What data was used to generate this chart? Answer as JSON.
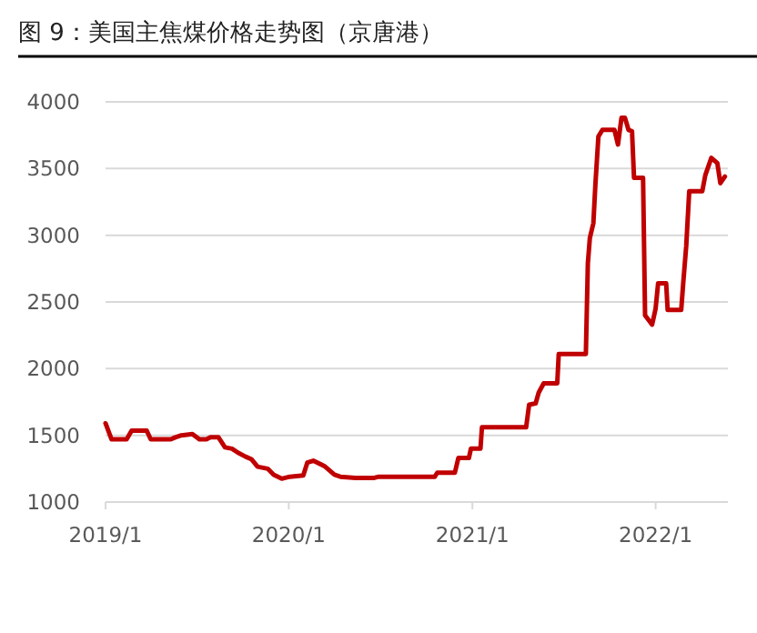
{
  "chart_data": {
    "type": "line",
    "title": "图 9：美国主焦煤价格走势图（京唐港）",
    "x": [
      "2019-01-01",
      "2019-01-13",
      "2019-02-12",
      "2019-02-22",
      "2019-03-24",
      "2019-04-01",
      "2019-05-11",
      "2019-05-20",
      "2019-06-01",
      "2019-06-23",
      "2019-07-07",
      "2019-07-21",
      "2019-07-29",
      "2019-08-14",
      "2019-08-27",
      "2019-09-10",
      "2019-09-22",
      "2019-10-07",
      "2019-10-19",
      "2019-10-31",
      "2019-11-20",
      "2019-12-02",
      "2019-12-18",
      "2020-01-03",
      "2020-01-30",
      "2020-02-07",
      "2020-02-19",
      "2020-03-12",
      "2020-04-01",
      "2020-04-13",
      "2020-05-13",
      "2020-06-18",
      "2020-06-28",
      "2020-10-18",
      "2020-10-23",
      "2020-11-27",
      "2020-12-04",
      "2020-12-25",
      "2020-12-29",
      "2021-01-17",
      "2021-01-20",
      "2021-04-18",
      "2021-04-24",
      "2021-05-07",
      "2021-05-13",
      "2021-05-23",
      "2021-06-19",
      "2021-06-22",
      "2021-08-15",
      "2021-08-19",
      "2021-08-23",
      "2021-08-30",
      "2021-09-03",
      "2021-09-09",
      "2021-09-17",
      "2021-10-11",
      "2021-10-18",
      "2021-10-25",
      "2021-11-01",
      "2021-11-08",
      "2021-11-15",
      "2021-11-19",
      "2021-12-07",
      "2021-12-11",
      "2021-12-19",
      "2021-12-25",
      "2022-01-01",
      "2022-01-06",
      "2022-01-22",
      "2022-01-25",
      "2022-02-21",
      "2022-02-25",
      "2022-03-03",
      "2022-03-09",
      "2022-04-04",
      "2022-04-10",
      "2022-04-22",
      "2022-05-04",
      "2022-05-10",
      "2022-05-19"
    ],
    "series": [
      {
        "color": "#c00000",
        "values": [
          1590,
          1470,
          1470,
          1535,
          1535,
          1470,
          1470,
          1485,
          1500,
          1510,
          1470,
          1470,
          1485,
          1485,
          1410,
          1400,
          1370,
          1340,
          1320,
          1265,
          1250,
          1205,
          1175,
          1190,
          1200,
          1295,
          1310,
          1270,
          1205,
          1190,
          1180,
          1180,
          1190,
          1190,
          1220,
          1220,
          1330,
          1330,
          1400,
          1400,
          1560,
          1560,
          1730,
          1740,
          1820,
          1890,
          1890,
          2110,
          2110,
          2790,
          2980,
          3090,
          3380,
          3740,
          3790,
          3790,
          3680,
          3880,
          3880,
          3790,
          3780,
          3430,
          3430,
          2400,
          2360,
          2330,
          2450,
          2640,
          2640,
          2440,
          2440,
          2640,
          2920,
          3330,
          3330,
          3450,
          3580,
          3540,
          3390,
          3440
        ]
      }
    ],
    "xlim": [
      "2019-01-01",
      "2022-05-25"
    ],
    "xticks": [
      {
        "value": "2019-01-01",
        "label": "2019/1"
      },
      {
        "value": "2020-01-01",
        "label": "2020/1"
      },
      {
        "value": "2021-01-01",
        "label": "2021/1"
      },
      {
        "value": "2022-01-01",
        "label": "2022/1"
      }
    ],
    "ylim": [
      1000,
      4000
    ],
    "yticks": [
      1000,
      1500,
      2000,
      2500,
      3000,
      3500,
      4000
    ],
    "grid": "y",
    "marker": "none",
    "line_style": "solid"
  }
}
